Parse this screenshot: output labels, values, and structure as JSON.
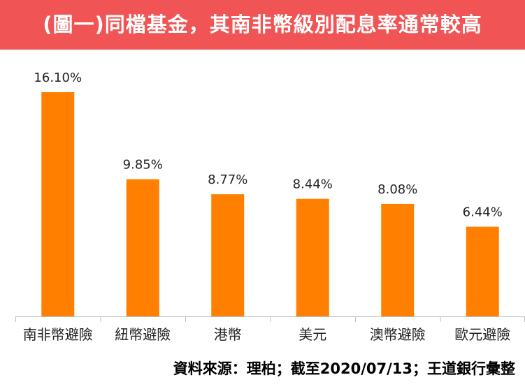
{
  "header": {
    "title": "(圖一)同檔基金，其南非幣級別配息率通常較高"
  },
  "chart_data": {
    "type": "bar",
    "categories": [
      "南非幣避險",
      "紐幣避險",
      "港幣",
      "美元",
      "澳幣避險",
      "歐元避險"
    ],
    "values": [
      16.1,
      9.85,
      8.77,
      8.44,
      8.08,
      6.44
    ],
    "value_labels": [
      "16.10%",
      "9.85%",
      "8.77%",
      "8.44%",
      "8.08%",
      "6.44%"
    ],
    "unit": "%",
    "ylim": [
      0,
      16.1
    ],
    "grid": false,
    "legend": "none",
    "bar_color": "#ff8000"
  },
  "source": {
    "text": "資料來源：理柏；截至2020/07/13；王道銀行彙整"
  }
}
